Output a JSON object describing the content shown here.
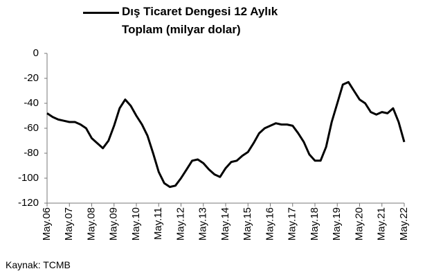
{
  "chart_data": {
    "type": "line",
    "categories": [
      "May.06",
      null,
      null,
      null,
      "May.07",
      null,
      null,
      null,
      "May.08",
      null,
      null,
      null,
      "May.09",
      null,
      null,
      null,
      "May.10",
      null,
      null,
      null,
      "May.11",
      null,
      null,
      null,
      "May.12",
      null,
      null,
      null,
      "May.13",
      null,
      null,
      null,
      "May.14",
      null,
      null,
      null,
      "May.15",
      null,
      null,
      null,
      "May.16",
      null,
      null,
      null,
      "May.17",
      null,
      null,
      null,
      "May.18",
      null,
      null,
      null,
      "May.19",
      null,
      null,
      null,
      "May.20",
      null,
      null,
      null,
      "May.21",
      null,
      null,
      null,
      "May.22"
    ],
    "series": [
      {
        "name": "Dış Ticaret Dengesi 12 Aylık Toplam (milyar dolar)",
        "color": "#000000",
        "values": [
          -48,
          -51,
          -53,
          -54,
          -55,
          -55,
          -57,
          -60,
          -68,
          -72,
          -76,
          -70,
          -58,
          -44,
          -37,
          -42,
          -50,
          -57,
          -66,
          -80,
          -95,
          -104,
          -107,
          -106,
          -100,
          -93,
          -86,
          -85,
          -88,
          -93,
          -97,
          -99,
          -92,
          -87,
          -86,
          -82,
          -79,
          -72,
          -64,
          -60,
          -58,
          -56,
          -57,
          -57,
          -58,
          -64,
          -71,
          -81,
          -86,
          -86,
          -75,
          -55,
          -40,
          -25,
          -23,
          -30,
          -37,
          -40,
          -47,
          -49,
          -47,
          -48,
          -44,
          -55,
          -71
        ]
      }
    ],
    "ylim": [
      -120,
      0
    ],
    "yticks": [
      -120,
      -100,
      -80,
      -60,
      -40,
      -20,
      0
    ],
    "legend": "top",
    "source": "Kaynak: TCMB"
  }
}
